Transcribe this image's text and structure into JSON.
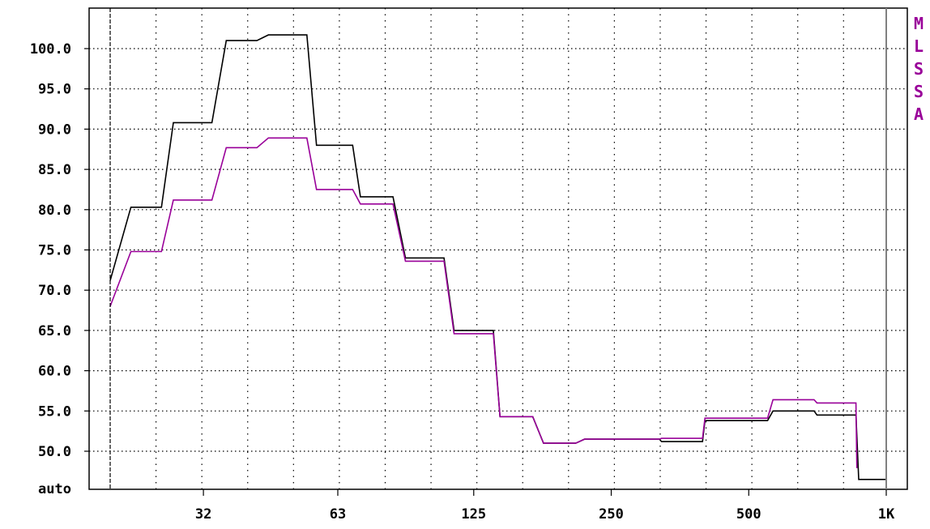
{
  "chart_data": {
    "type": "line",
    "title": "",
    "xlabel": "",
    "ylabel": "",
    "x_scale": "log",
    "xlim": [
      20,
      1000
    ],
    "ylim": [
      48,
      105
    ],
    "grid": true,
    "y_ticks": [
      {
        "value": 100,
        "label": "100.0"
      },
      {
        "value": 95,
        "label": "95.0"
      },
      {
        "value": 90,
        "label": "90.0"
      },
      {
        "value": 85,
        "label": "85.0"
      },
      {
        "value": 80,
        "label": "80.0"
      },
      {
        "value": 75,
        "label": "75.0"
      },
      {
        "value": 70,
        "label": "70.0"
      },
      {
        "value": 65,
        "label": "65.0"
      },
      {
        "value": 60,
        "label": "60.0"
      },
      {
        "value": 55,
        "label": "55.0"
      },
      {
        "value": 50,
        "label": "50.0"
      }
    ],
    "y_bottom_label": "auto",
    "x_ticks": [
      {
        "value": 32,
        "label": "32"
      },
      {
        "value": 63,
        "label": "63"
      },
      {
        "value": 125,
        "label": "125"
      },
      {
        "value": 250,
        "label": "250"
      },
      {
        "value": 500,
        "label": "500"
      },
      {
        "value": 1000,
        "label": "1K"
      }
    ],
    "side_label": [
      "M",
      "L",
      "S",
      "S",
      "A"
    ],
    "series": [
      {
        "color": "#000000",
        "points": [
          [
            20,
            71.2
          ],
          [
            22.2,
            80.3
          ],
          [
            25.9,
            80.3
          ],
          [
            27.5,
            90.8
          ],
          [
            33.4,
            90.8
          ],
          [
            35.9,
            101.0
          ],
          [
            41.9,
            101.0
          ],
          [
            44.4,
            101.7
          ],
          [
            53.9,
            101.7
          ],
          [
            56.6,
            88.0
          ],
          [
            67.9,
            88.0
          ],
          [
            70.6,
            81.6
          ],
          [
            83.2,
            81.6
          ],
          [
            88.6,
            74.0
          ],
          [
            107.6,
            74.0
          ],
          [
            113.2,
            65.0
          ],
          [
            138.0,
            65.0
          ],
          [
            142.7,
            54.3
          ],
          [
            168.3,
            54.3
          ],
          [
            177.7,
            51.0
          ],
          [
            209.0,
            51.0
          ],
          [
            218.6,
            51.5
          ],
          [
            318.8,
            51.5
          ],
          [
            322.2,
            51.2
          ],
          [
            396.1,
            51.2
          ],
          [
            401.0,
            53.8
          ],
          [
            549.7,
            53.8
          ],
          [
            565.1,
            55.0
          ],
          [
            694.9,
            55.0
          ],
          [
            705.2,
            54.5
          ],
          [
            858.2,
            54.5
          ],
          [
            870.2,
            46.5
          ],
          [
            1000,
            46.5
          ]
        ]
      },
      {
        "color": "#990099",
        "points": [
          [
            20,
            68.0
          ],
          [
            22.2,
            74.8
          ],
          [
            25.9,
            74.8
          ],
          [
            27.5,
            81.2
          ],
          [
            33.4,
            81.2
          ],
          [
            35.9,
            87.7
          ],
          [
            41.9,
            87.7
          ],
          [
            44.4,
            88.9
          ],
          [
            53.9,
            88.9
          ],
          [
            56.6,
            82.5
          ],
          [
            67.9,
            82.5
          ],
          [
            70.6,
            80.7
          ],
          [
            83.2,
            80.7
          ],
          [
            88.6,
            73.6
          ],
          [
            107.6,
            73.6
          ],
          [
            113.2,
            64.6
          ],
          [
            138.0,
            64.6
          ],
          [
            142.7,
            54.3
          ],
          [
            168.3,
            54.3
          ],
          [
            177.7,
            51.0
          ],
          [
            209.0,
            51.0
          ],
          [
            218.6,
            51.5
          ],
          [
            318.8,
            51.5
          ],
          [
            322.2,
            51.6
          ],
          [
            396.1,
            51.6
          ],
          [
            401.0,
            54.1
          ],
          [
            549.7,
            54.1
          ],
          [
            565.1,
            56.4
          ],
          [
            694.9,
            56.4
          ],
          [
            705.2,
            56.0
          ],
          [
            858.2,
            56.0
          ],
          [
            862.2,
            47.9
          ]
        ]
      }
    ]
  }
}
